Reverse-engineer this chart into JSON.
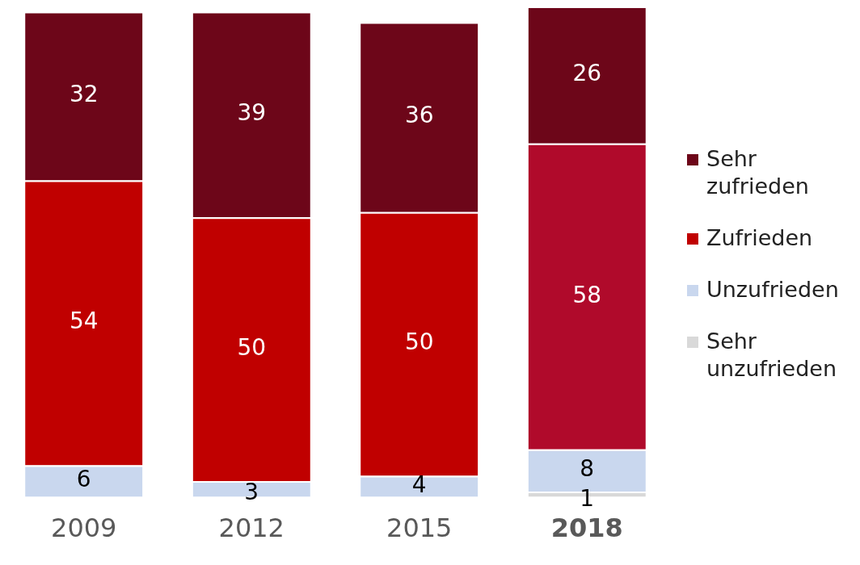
{
  "chart_data": {
    "type": "bar",
    "stacked": true,
    "data_labels": true,
    "legend": "right",
    "categories": [
      "2009",
      "2012",
      "2015",
      "2018"
    ],
    "series": [
      {
        "name": "Sehr unzufrieden",
        "color": "#d9d9d9",
        "values": [
          null,
          null,
          null,
          1
        ]
      },
      {
        "name": "Unzufrieden",
        "color": "#c9d7ee",
        "values": [
          6,
          3,
          4,
          8
        ]
      },
      {
        "name": "Zufrieden",
        "color": "#c00000",
        "colors": [
          "#c00000",
          "#c00000",
          "#c00000",
          "#b00a2b"
        ],
        "values": [
          54,
          50,
          50,
          58
        ]
      },
      {
        "name": "Sehr zufrieden",
        "color": "#6d0619",
        "values": [
          32,
          39,
          36,
          26
        ]
      }
    ]
  }
}
